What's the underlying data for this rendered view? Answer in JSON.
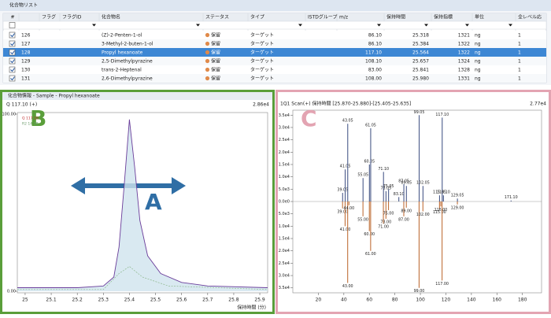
{
  "list": {
    "title": "化合物リスト",
    "columns": [
      "#",
      "フラグ",
      "フラグID",
      "化合物名",
      "ステータス",
      "タイプ",
      "ISTDグループ",
      "m/z",
      "保持時間",
      "保持指標",
      "単位",
      "全レベル応"
    ],
    "rows": [
      [
        "126",
        "(Z)-2-Penten-1-ol",
        "保留",
        "ターゲット",
        "86.10",
        "25.318",
        "1321",
        "ng",
        "1"
      ],
      [
        "127",
        "3-Methyl-2-buten-1-ol",
        "保留",
        "ターゲット",
        "86.10",
        "25.384",
        "1322",
        "ng",
        "1"
      ],
      [
        "128",
        "Propyl hexanoate",
        "保留",
        "ターゲット",
        "117.10",
        "25.564",
        "1322",
        "ng",
        "1"
      ],
      [
        "129",
        "2,5-Dimethylpyrazine",
        "保留",
        "ターゲット",
        "108.10",
        "25.657",
        "1324",
        "ng",
        "1"
      ],
      [
        "130",
        "trans-2-Heptenal",
        "保留",
        "ターゲット",
        "83.00",
        "25.841",
        "1328",
        "ng",
        "1"
      ],
      [
        "131",
        "2,6-Dimethylpyrazine",
        "保留",
        "ターゲット",
        "108.00",
        "25.980",
        "1331",
        "ng",
        "1"
      ]
    ],
    "selected_row": 2
  },
  "chromatogram": {
    "type": "line",
    "title": "化合物情報 - Sample - Propyl hexanoate",
    "trace_label": "Q 117.10 (+)",
    "scale_label": "2.86e4",
    "xlabel": "保持時間 (分)",
    "annotation_a": "A",
    "annotation_b": "B",
    "xlim": [
      24.97,
      25.93
    ],
    "xticks": [
      25.0,
      25.1,
      25.2,
      25.3,
      25.4,
      25.5,
      25.6,
      25.7,
      25.8,
      25.9
    ],
    "ylim": [
      0,
      100
    ],
    "yticks": [
      {
        "value": 100,
        "label": "100.00"
      },
      {
        "value": 0,
        "label": "0.00"
      }
    ],
    "series": [
      {
        "name": "Q 117.10",
        "color": "#6a3d9a",
        "x": [
          24.97,
          25.2,
          25.3,
          25.34,
          25.36,
          25.38,
          25.4,
          25.42,
          25.44,
          25.47,
          25.52,
          25.6,
          25.7,
          25.93
        ],
        "values": [
          2,
          2,
          3,
          8,
          25,
          60,
          97,
          70,
          40,
          20,
          10,
          5,
          3,
          2
        ]
      },
      {
        "name": "R2 14.38",
        "color": "#8fb98f",
        "x": [
          24.97,
          25.3,
          25.36,
          25.4,
          25.45,
          25.55,
          25.93
        ],
        "values": [
          1,
          1,
          10,
          14,
          8,
          3,
          1
        ]
      }
    ]
  },
  "spectrum": {
    "type": "bar",
    "title": "1Q1 Scan(+) 保持時間 [25.870-25.880]-[25.405-25.635]",
    "scale_label": "2.77e4",
    "annotation_c": "C",
    "xlim": [
      0,
      195
    ],
    "xticks": [
      20,
      40,
      60,
      80,
      100,
      120,
      140,
      160,
      180
    ],
    "ylim": [
      -37000,
      37000
    ],
    "yticks": [
      {
        "value": 35000,
        "label": "3.5e4"
      },
      {
        "value": 30000,
        "label": "3.0e4"
      },
      {
        "value": 25000,
        "label": "2.5e4"
      },
      {
        "value": 20000,
        "label": "2.0e4"
      },
      {
        "value": 15000,
        "label": "1.5e4"
      },
      {
        "value": 10000,
        "label": "1.0e4"
      },
      {
        "value": 5000,
        "label": "5.0e3"
      },
      {
        "value": 0,
        "label": "0.0e0"
      },
      {
        "value": -5000,
        "label": "5.0e3"
      },
      {
        "value": -10000,
        "label": "1.0e4"
      },
      {
        "value": -15000,
        "label": "1.5e4"
      },
      {
        "value": -20000,
        "label": "2.0e4"
      },
      {
        "value": -25000,
        "label": "2.5e4"
      },
      {
        "value": -30000,
        "label": "3.0e4"
      },
      {
        "value": -35000,
        "label": "3.5e4"
      }
    ],
    "upper": {
      "color": "#4a5a8a",
      "peaks": [
        {
          "mz": 39.05,
          "label": "39.05",
          "h": 3500
        },
        {
          "mz": 41.05,
          "label": "41.05",
          "h": 13000
        },
        {
          "mz": 43.05,
          "label": "43.05",
          "h": 31500
        },
        {
          "mz": 55.05,
          "label": "55.05",
          "h": 9500
        },
        {
          "mz": 60.05,
          "label": "60.05",
          "h": 15000
        },
        {
          "mz": 61.05,
          "label": "61.05",
          "h": 29700
        },
        {
          "mz": 71.1,
          "label": "71.10",
          "h": 12000
        },
        {
          "mz": 73.05,
          "label": "73.05",
          "h": 4200
        },
        {
          "mz": 75.05,
          "label": "75.05",
          "h": 5000
        },
        {
          "mz": 83.1,
          "label": "83.10",
          "h": 1800
        },
        {
          "mz": 87.05,
          "label": "87.05",
          "h": 7000
        },
        {
          "mz": 89.05,
          "label": "89.05",
          "h": 6300
        },
        {
          "mz": 99.05,
          "label": "99.05",
          "h": 35000
        },
        {
          "mz": 102.05,
          "label": "102.05",
          "h": 6300
        },
        {
          "mz": 115.05,
          "label": "115.05",
          "h": 2500
        },
        {
          "mz": 117.1,
          "label": "117.10",
          "h": 34000
        },
        {
          "mz": 118.1,
          "label": "118.10",
          "h": 2500
        },
        {
          "mz": 129.05,
          "label": "129.05",
          "h": 1200
        },
        {
          "mz": 171.1,
          "label": "171.10",
          "h": 400
        }
      ]
    },
    "lower": {
      "color": "#c0703a",
      "peaks": [
        {
          "mz": 39.0,
          "label": "39.00",
          "h": 2800
        },
        {
          "mz": 41.0,
          "label": "41.00",
          "h": 10000
        },
        {
          "mz": 43.0,
          "label": "43.00",
          "h": 33000
        },
        {
          "mz": 44.0,
          "label": "44.00",
          "h": 1500
        },
        {
          "mz": 55.0,
          "label": "55.00",
          "h": 6000
        },
        {
          "mz": 60.0,
          "label": "60.00",
          "h": 12000
        },
        {
          "mz": 61.0,
          "label": "61.00",
          "h": 20000
        },
        {
          "mz": 71.0,
          "label": "71.00",
          "h": 9000
        },
        {
          "mz": 73.0,
          "label": "73.00",
          "h": 7000
        },
        {
          "mz": 75.0,
          "label": "75.00",
          "h": 3500
        },
        {
          "mz": 87.0,
          "label": "87.00",
          "h": 6000
        },
        {
          "mz": 89.0,
          "label": "89.00",
          "h": 2500
        },
        {
          "mz": 99.0,
          "label": "99.00",
          "h": 35000
        },
        {
          "mz": 102.0,
          "label": "102.00",
          "h": 4000
        },
        {
          "mz": 115.0,
          "label": "115.00",
          "h": 3000
        },
        {
          "mz": 116.0,
          "label": "116.00",
          "h": 2000
        },
        {
          "mz": 117.0,
          "label": "117.00",
          "h": 32000
        },
        {
          "mz": 129.0,
          "label": "129.00",
          "h": 1200
        }
      ]
    }
  }
}
